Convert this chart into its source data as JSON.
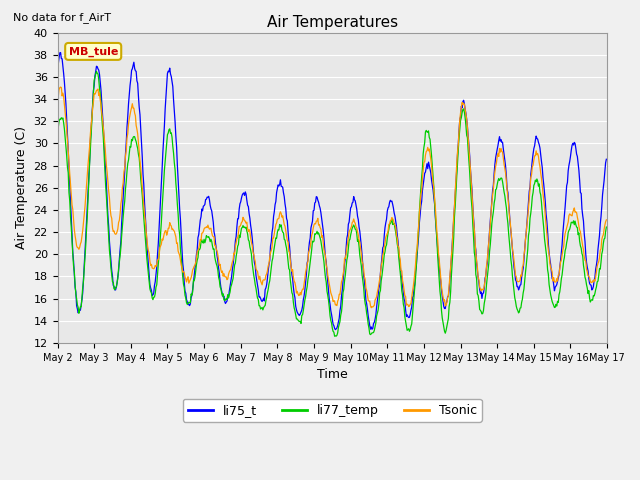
{
  "title": "Air Temperatures",
  "subtitle": "No data for f_AirT",
  "xlabel": "Time",
  "ylabel": "Air Temperature (C)",
  "ylim": [
    12,
    40
  ],
  "yticks": [
    12,
    14,
    16,
    18,
    20,
    22,
    24,
    26,
    28,
    30,
    32,
    34,
    36,
    38,
    40
  ],
  "xtick_labels": [
    "May 2",
    "May 3",
    "May 4",
    "May 5",
    "May 6",
    "May 7",
    "May 8",
    "May 9",
    "May 10",
    "May 11",
    "May 12",
    "May 13",
    "May 14",
    "May 15",
    "May 16",
    "May 17"
  ],
  "series_colors": {
    "li75_t": "#0000ff",
    "li77_temp": "#00cc00",
    "Tsonic": "#ff9900"
  },
  "background_color": "#e8e8e8",
  "grid_color": "#ffffff",
  "annotation_text": "MB_tule",
  "annotation_color": "#cc0000",
  "annotation_bg": "#ffffcc",
  "annotation_border": "#ccaa00",
  "fig_bg": "#f0f0f0",
  "n_days": 15,
  "pts_per_day": 48,
  "peak_hour": 14,
  "blue_day_peaks": [
    38.0,
    37.0,
    37.0,
    37.5,
    25.0,
    25.5,
    26.5,
    25.0,
    25.0,
    24.5,
    27.5,
    34.0,
    30.5,
    30.5,
    30.0
  ],
  "blue_day_nights": [
    15.5,
    14.0,
    19.0,
    14.5,
    16.0,
    15.5,
    16.0,
    13.5,
    13.0,
    13.5,
    15.0,
    15.5,
    17.0,
    17.0,
    17.0
  ],
  "green_day_peaks": [
    32.0,
    37.0,
    30.5,
    32.0,
    21.5,
    22.5,
    22.5,
    22.0,
    22.5,
    22.0,
    31.0,
    33.5,
    27.0,
    27.0,
    23.0
  ],
  "green_day_nights": [
    17.0,
    13.5,
    19.5,
    13.5,
    17.0,
    15.0,
    15.0,
    13.0,
    12.5,
    13.0,
    13.0,
    13.0,
    16.0,
    14.0,
    16.0
  ],
  "orange_day_peaks": [
    35.0,
    35.0,
    34.0,
    22.5,
    22.5,
    23.0,
    23.5,
    23.0,
    23.0,
    22.5,
    29.0,
    34.0,
    29.5,
    29.5,
    24.0
  ],
  "orange_day_nights": [
    19.0,
    21.5,
    22.0,
    16.5,
    18.5,
    17.5,
    17.5,
    15.5,
    15.5,
    15.0,
    15.5,
    15.5,
    17.5,
    17.5,
    17.5
  ]
}
